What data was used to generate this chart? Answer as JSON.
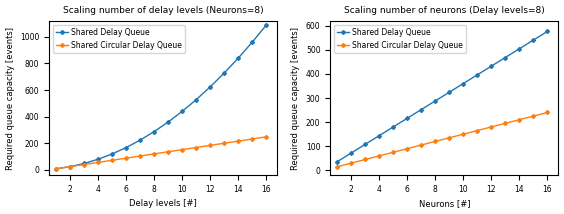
{
  "N_fixed": 8,
  "D_fixed": 8,
  "delay_levels": [
    1,
    2,
    3,
    4,
    5,
    6,
    7,
    8,
    9,
    10,
    11,
    12,
    13,
    14,
    15,
    16
  ],
  "neurons": [
    1,
    2,
    3,
    4,
    5,
    6,
    7,
    8,
    9,
    10,
    11,
    12,
    13,
    14,
    15,
    16
  ],
  "title_left": "Scaling number of delay levels (Neurons=8)",
  "title_right": "Scaling number of neurons (Delay levels=8)",
  "xlabel_left": "Delay levels [#]",
  "xlabel_right": "Neurons [#]",
  "ylabel": "Required queue capacity [events]",
  "label_sdq": "Shared Delay Queue",
  "label_scdq": "Shared Circular Delay Queue",
  "color_sdq": "#1f77b4",
  "color_scdq": "#ff7f0e",
  "marker": "D",
  "markersize": 2.0,
  "linewidth": 1.0,
  "title_fontsize": 6.5,
  "label_fontsize": 6.0,
  "tick_fontsize": 5.5,
  "legend_fontsize": 5.5,
  "figsize": [
    5.64,
    2.14
  ],
  "dpi": 100,
  "xticks_both": [
    2,
    4,
    6,
    8,
    10,
    12,
    14,
    16
  ],
  "yticks_left": [
    0,
    200,
    400,
    600,
    800,
    1000
  ],
  "yticks_right": [
    0,
    100,
    200,
    300,
    400,
    500,
    600
  ],
  "ylim_left": [
    -40,
    1120
  ],
  "ylim_right": [
    -20,
    620
  ],
  "xlim": [
    0.5,
    16.8
  ]
}
